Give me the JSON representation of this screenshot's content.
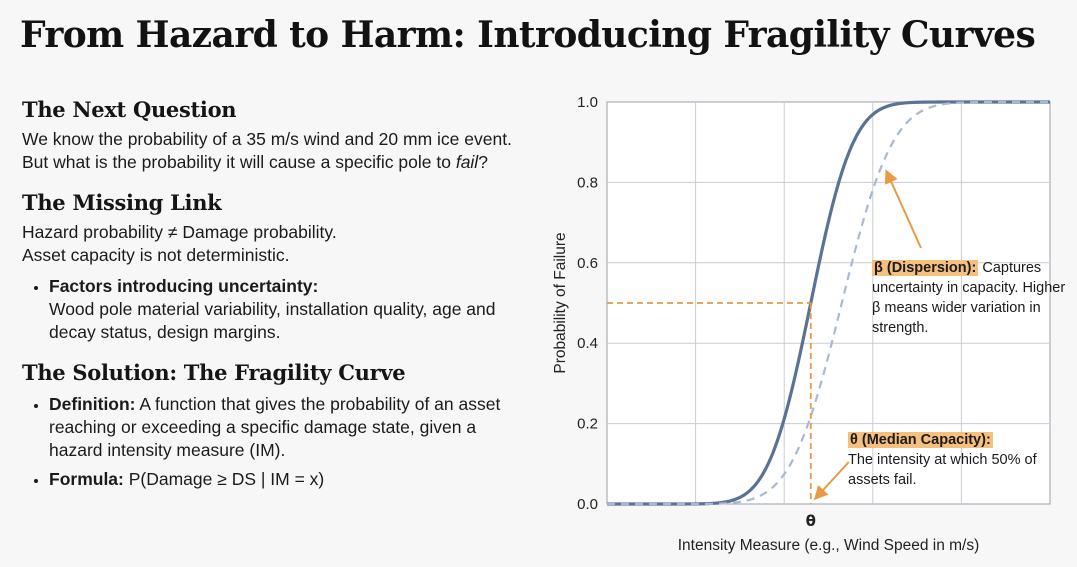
{
  "title": "From Hazard to Harm: Introducing Fragility Curves",
  "next_question": {
    "heading": "The Next Question",
    "text_before": "We know the probability of a 35 m/s wind and 20 mm ice event. But what is the probability it will cause a specific pole to ",
    "text_em": "fail",
    "text_after": "?"
  },
  "missing_link": {
    "heading": "The Missing Link",
    "line1": "Hazard probability ≠ Damage probability.",
    "line2": "Asset capacity is not deterministic.",
    "bullet_label": "Factors introducing uncertainty:",
    "bullet_text": "Wood pole material variability, installation quality, age and decay status, design margins."
  },
  "solution": {
    "heading": "The Solution: The Fragility Curve",
    "def_label": "Definition:",
    "def_text": " A function that gives the probability of an asset reaching or exceeding a specific damage state, given a hazard intensity measure (IM).",
    "formula_label": "Formula:",
    "formula_text": " P(Damage ≥ DS | IM = x)"
  },
  "annotations": {
    "beta_label": "β (Dispersion):",
    "beta_text": " Captures uncertainty in capacity. Higher β means wider variation in strength.",
    "theta_label": "θ (Median Capacity):",
    "theta_text": "The intensity at which 50% of assets fail."
  },
  "colors": {
    "curve": "#5a7293",
    "curve_dashed": "#a9b8d4",
    "guide": "#e89a45",
    "grid": "#c8ccd3",
    "highlight": "#f5bf7e"
  },
  "chart_data": {
    "type": "line",
    "xlabel": "Intensity Measure (e.g., Wind Speed in m/s)",
    "ylabel": "Probability of Failure",
    "ylim": [
      0,
      1
    ],
    "yticks": [
      0.0,
      0.2,
      0.4,
      0.6,
      0.8,
      1.0
    ],
    "ytick_labels": [
      "0.0",
      "0.2",
      "0.4",
      "0.6",
      "0.8",
      "1.0"
    ],
    "xlim": [
      0,
      1
    ],
    "xtick_labels": [
      "θ"
    ],
    "xtick_positions": [
      0.46
    ],
    "grid": true,
    "median": 0.46,
    "median_probability": 0.5,
    "series": [
      {
        "style": "solid",
        "median": 0.46,
        "spread": 0.075
      },
      {
        "style": "dashed",
        "median": 0.53,
        "spread": 0.09
      }
    ]
  }
}
